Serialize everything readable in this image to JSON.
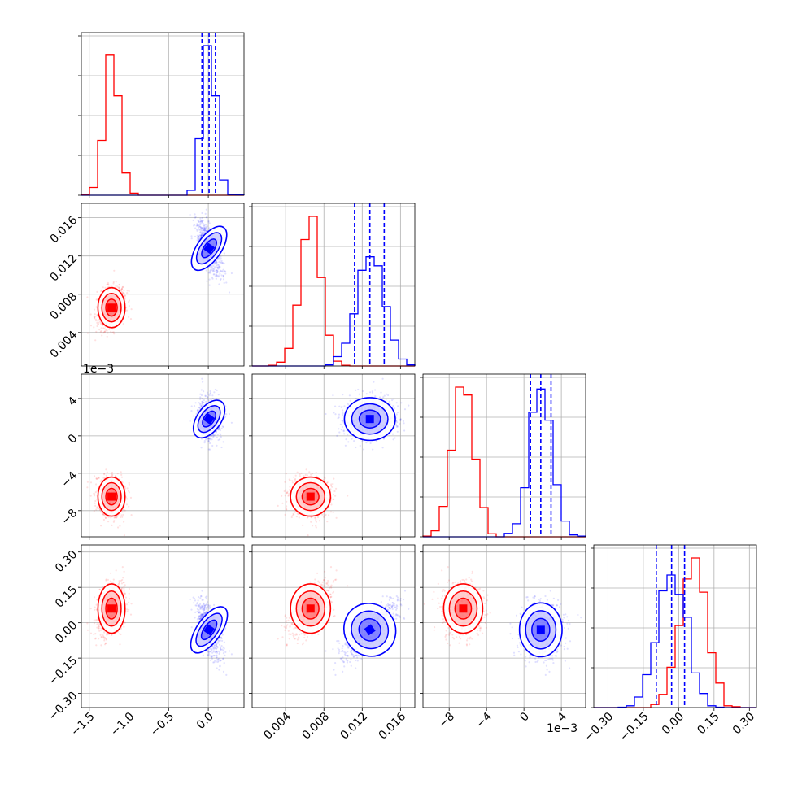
{
  "chart_data": {
    "type": "scatter",
    "title": "",
    "parameters": [
      {
        "range": [
          -1.6,
          0.45
        ],
        "ticks": [
          -1.5,
          -1.0,
          -0.5,
          0.0
        ],
        "tick_labels": [
          "−1.5",
          "−1.0",
          "−0.5",
          "0.0"
        ],
        "offset": ""
      },
      {
        "range": [
          0.0005,
          0.0175
        ],
        "ticks": [
          0.004,
          0.008,
          0.012,
          0.016
        ],
        "tick_labels": [
          "0.004",
          "0.008",
          "0.012",
          "0.016"
        ],
        "offset": ""
      },
      {
        "range": [
          -0.0108,
          0.0066
        ],
        "ticks": [
          -0.008,
          -0.004,
          0.0,
          0.004
        ],
        "tick_labels": [
          "−8",
          "−4",
          "0",
          "4"
        ],
        "offset": "1e−3"
      },
      {
        "range": [
          -0.36,
          0.33
        ],
        "ticks": [
          -0.3,
          -0.15,
          0.0,
          0.15,
          0.3
        ],
        "tick_labels": [
          "−0.30",
          "−0.15",
          "0.00",
          "0.15",
          "0.30"
        ],
        "offset": ""
      }
    ],
    "series": [
      {
        "color": "#ff0000",
        "means": [
          -1.22,
          0.0066,
          -0.0065,
          0.06
        ],
        "stds": [
          0.09,
          0.0011,
          0.0011,
          0.055
        ]
      },
      {
        "color": "#0000ff",
        "means": [
          0.01,
          0.0128,
          0.0018,
          -0.03
        ],
        "stds": [
          0.08,
          0.0014,
          0.0012,
          0.06
        ]
      }
    ],
    "quantile_lines": [
      [
        -0.08,
        0.01,
        0.09
      ],
      [
        0.0112,
        0.0128,
        0.0143
      ],
      [
        0.0007,
        0.0018,
        0.0029
      ],
      [
        -0.095,
        -0.03,
        0.025
      ]
    ],
    "quantile_color": "#0000ff",
    "grid": true
  },
  "colors": {
    "red": "#ff0000",
    "blue": "#0000ff",
    "grid": "#b0b0b0"
  }
}
